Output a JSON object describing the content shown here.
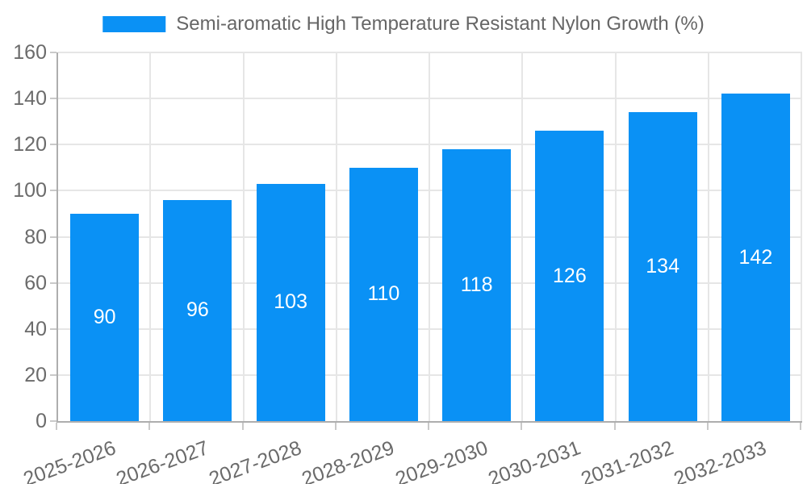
{
  "chart_data": {
    "type": "bar",
    "title": "Semi-aromatic High Temperature Resistant Nylon Growth (%)",
    "categories": [
      "2025-2026",
      "2026-2027",
      "2027-2028",
      "2028-2029",
      "2029-2030",
      "2030-2031",
      "2031-2032",
      "2032-2033"
    ],
    "values": [
      90,
      96,
      103,
      110,
      118,
      126,
      134,
      142
    ],
    "series": [
      {
        "name": "Semi-aromatic High Temperature Resistant Nylon Growth (%)",
        "values": [
          90,
          96,
          103,
          110,
          118,
          126,
          134,
          142
        ]
      }
    ],
    "xlabel": "",
    "ylabel": "",
    "ylim": [
      0,
      160
    ],
    "ytick_step": 20,
    "yticks": [
      0,
      20,
      40,
      60,
      80,
      100,
      120,
      140,
      160
    ],
    "grid": true,
    "legend_position": "top",
    "x_label_rotation_deg": -20,
    "value_labels_visible": true
  },
  "legend": {
    "label": "Semi-aromatic High Temperature Resistant Nylon Growth (%)"
  },
  "colors": {
    "bar": "#0a91f5",
    "value_label": "#ffffff",
    "axis_line": "#aeaeae",
    "gridline": "#e6e6e6",
    "tick_mark": "#c9c9c9",
    "tick_text": "#6b6b6b",
    "legend_text": "#666666",
    "background": "#ffffff"
  }
}
